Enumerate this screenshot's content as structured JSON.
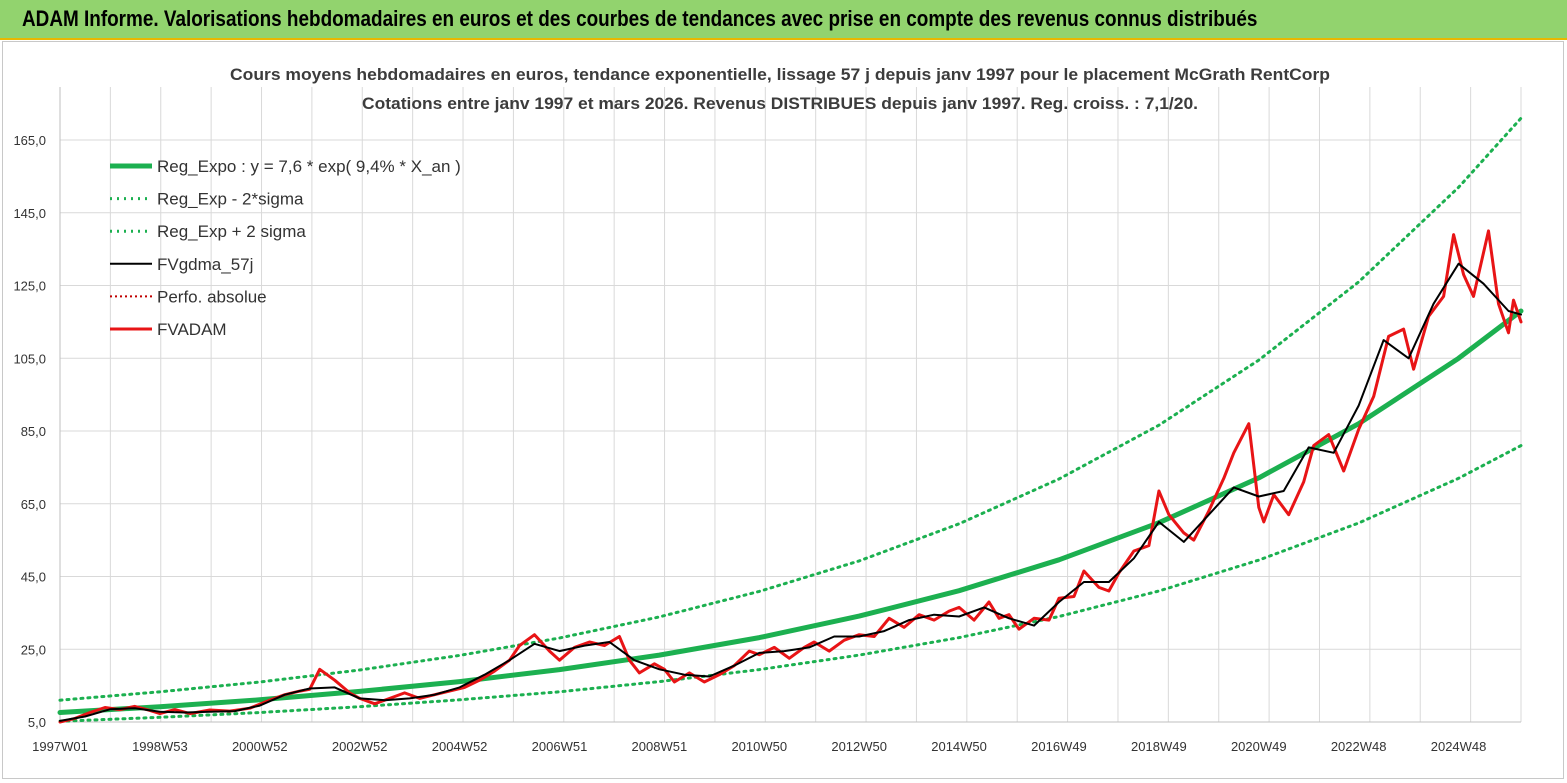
{
  "header": {
    "banner": "ADAM Informe. Valorisations hebdomadaires en euros et des courbes de tendances avec prise en compte des revenus connus distribués"
  },
  "chart_data": {
    "type": "line",
    "title": "Cours moyens hebdomadaires en euros, tendance exponentielle, lissage 57 j depuis janv 1997 pour le placement McGrath RentCorp",
    "subtitle": "Cotations entre janv 1997 et mars 2026. Revenus DISTRIBUES depuis janv 1997. Reg. croiss. : 7,1/20.",
    "xlabel": "",
    "ylabel": "",
    "x_tick_labels": [
      "1997W01",
      "1998W53",
      "2000W52",
      "2002W52",
      "2004W52",
      "2006W51",
      "2008W51",
      "2010W50",
      "2012W50",
      "2014W50",
      "2016W49",
      "2018W49",
      "2020W49",
      "2022W48",
      "2024W48"
    ],
    "x_range": [
      1997.0,
      2026.25
    ],
    "x_tick_years": [
      1997.0,
      1999.0,
      2001.0,
      2003.0,
      2005.0,
      2007.0,
      2009.0,
      2011.0,
      2013.0,
      2015.0,
      2017.0,
      2019.0,
      2021.0,
      2023.0,
      2025.0
    ],
    "y_ticks": [
      "5,0",
      "25,0",
      "45,0",
      "65,0",
      "85,0",
      "105,0",
      "125,0",
      "145,0",
      "165,0"
    ],
    "ylim": [
      5,
      165
    ],
    "grid": true,
    "legend_position": "top-left",
    "series": [
      {
        "name": "Reg_Expo : y = 7,6 * exp( 9,4% *  X_an )",
        "style": "solid-thick",
        "color": "#1cb050",
        "points": [
          [
            1997.0,
            7.6
          ],
          [
            1999,
            9.2
          ],
          [
            2001,
            11.1
          ],
          [
            2003,
            13.4
          ],
          [
            2005,
            16.1
          ],
          [
            2007,
            19.4
          ],
          [
            2009,
            23.4
          ],
          [
            2011,
            28.2
          ],
          [
            2013,
            34.1
          ],
          [
            2015,
            41.1
          ],
          [
            2017,
            49.6
          ],
          [
            2019,
            59.8
          ],
          [
            2021,
            72.1
          ],
          [
            2023,
            87.0
          ],
          [
            2025,
            105.0
          ],
          [
            2026.25,
            118.0
          ]
        ]
      },
      {
        "name": "Reg_Exp - 2*sigma",
        "style": "dotted",
        "color": "#1cb050",
        "points": [
          [
            1997.0,
            5.2
          ],
          [
            1999,
            6.3
          ],
          [
            2001,
            7.6
          ],
          [
            2003,
            9.2
          ],
          [
            2005,
            11.1
          ],
          [
            2007,
            13.3
          ],
          [
            2009,
            16.1
          ],
          [
            2011,
            19.4
          ],
          [
            2013,
            23.4
          ],
          [
            2015,
            28.2
          ],
          [
            2017,
            34.0
          ],
          [
            2019,
            41.0
          ],
          [
            2021,
            49.5
          ],
          [
            2023,
            59.7
          ],
          [
            2025,
            72.0
          ],
          [
            2026.25,
            81.0
          ]
        ]
      },
      {
        "name": "Reg_Exp + 2 sigma",
        "style": "dotted",
        "color": "#1cb050",
        "points": [
          [
            1997.0,
            11.0
          ],
          [
            1999,
            13.3
          ],
          [
            2001,
            16.0
          ],
          [
            2003,
            19.3
          ],
          [
            2005,
            23.3
          ],
          [
            2007,
            28.1
          ],
          [
            2009,
            33.9
          ],
          [
            2011,
            40.9
          ],
          [
            2013,
            49.3
          ],
          [
            2015,
            59.5
          ],
          [
            2017,
            71.8
          ],
          [
            2019,
            86.6
          ],
          [
            2021,
            104.5
          ],
          [
            2023,
            126.0
          ],
          [
            2025,
            152.0
          ],
          [
            2026.25,
            171.0
          ]
        ]
      },
      {
        "name": "FVgdma_57j",
        "style": "solid-thin",
        "color": "#000000",
        "points": [
          [
            1997.0,
            5.3
          ],
          [
            1997.5,
            6.5
          ],
          [
            1998.0,
            8.5
          ],
          [
            1998.5,
            8.8
          ],
          [
            1999.0,
            7.8
          ],
          [
            1999.5,
            7.6
          ],
          [
            2000.0,
            7.8
          ],
          [
            2000.5,
            8.0
          ],
          [
            2001.0,
            9.5
          ],
          [
            2001.5,
            12.5
          ],
          [
            2002.0,
            14.2
          ],
          [
            2002.5,
            14.5
          ],
          [
            2003.0,
            11.5
          ],
          [
            2003.5,
            11.0
          ],
          [
            2004.0,
            11.5
          ],
          [
            2004.5,
            12.5
          ],
          [
            2005.0,
            14.5
          ],
          [
            2005.5,
            18.0
          ],
          [
            2006.0,
            22.0
          ],
          [
            2006.5,
            26.5
          ],
          [
            2007.0,
            24.5
          ],
          [
            2007.5,
            26.0
          ],
          [
            2008.0,
            27.0
          ],
          [
            2008.5,
            22.0
          ],
          [
            2009.0,
            19.5
          ],
          [
            2009.5,
            18.0
          ],
          [
            2010.0,
            17.5
          ],
          [
            2010.5,
            20.5
          ],
          [
            2011.0,
            24.0
          ],
          [
            2011.5,
            24.5
          ],
          [
            2012.0,
            25.5
          ],
          [
            2012.5,
            28.5
          ],
          [
            2013.0,
            28.5
          ],
          [
            2013.5,
            30.0
          ],
          [
            2014.0,
            33.0
          ],
          [
            2014.5,
            34.5
          ],
          [
            2015.0,
            34.0
          ],
          [
            2015.5,
            36.5
          ],
          [
            2016.0,
            33.5
          ],
          [
            2016.5,
            31.5
          ],
          [
            2017.0,
            38.0
          ],
          [
            2017.5,
            43.5
          ],
          [
            2018.0,
            43.5
          ],
          [
            2018.5,
            50.0
          ],
          [
            2019.0,
            60.0
          ],
          [
            2019.5,
            54.5
          ],
          [
            2020.0,
            62.0
          ],
          [
            2020.5,
            69.5
          ],
          [
            2021.0,
            67.0
          ],
          [
            2021.5,
            68.5
          ],
          [
            2022.0,
            80.5
          ],
          [
            2022.5,
            79.0
          ],
          [
            2023.0,
            92.0
          ],
          [
            2023.5,
            110.0
          ],
          [
            2024.0,
            105.0
          ],
          [
            2024.5,
            120.0
          ],
          [
            2025.0,
            131.0
          ],
          [
            2025.5,
            125.5
          ],
          [
            2026.0,
            118.0
          ],
          [
            2026.25,
            117.0
          ]
        ]
      },
      {
        "name": "Perfo. absolue",
        "style": "dotted",
        "color": "#c00000",
        "points": []
      },
      {
        "name": "FVADAM",
        "style": "solid-thick",
        "color": "#e81416",
        "points": [
          [
            1997.0,
            5.0
          ],
          [
            1997.3,
            6.0
          ],
          [
            1997.6,
            7.6
          ],
          [
            1997.9,
            9.0
          ],
          [
            1998.2,
            8.4
          ],
          [
            1998.5,
            9.3
          ],
          [
            1998.8,
            8.2
          ],
          [
            1999.0,
            7.3
          ],
          [
            1999.3,
            8.4
          ],
          [
            1999.6,
            7.3
          ],
          [
            2000.0,
            8.3
          ],
          [
            2000.4,
            8.0
          ],
          [
            2000.8,
            8.8
          ],
          [
            2001.2,
            11.0
          ],
          [
            2001.5,
            12.5
          ],
          [
            2001.8,
            13.5
          ],
          [
            2002.0,
            14.0
          ],
          [
            2002.2,
            19.5
          ],
          [
            2002.5,
            16.5
          ],
          [
            2002.8,
            13.0
          ],
          [
            2003.0,
            11.5
          ],
          [
            2003.3,
            10.0
          ],
          [
            2003.6,
            11.5
          ],
          [
            2003.9,
            13.0
          ],
          [
            2004.2,
            11.5
          ],
          [
            2004.5,
            12.5
          ],
          [
            2004.8,
            13.5
          ],
          [
            2005.1,
            14.5
          ],
          [
            2005.4,
            16.5
          ],
          [
            2005.7,
            19.0
          ],
          [
            2006.0,
            22.0
          ],
          [
            2006.2,
            26.0
          ],
          [
            2006.5,
            29.0
          ],
          [
            2006.8,
            24.5
          ],
          [
            2007.0,
            22.0
          ],
          [
            2007.3,
            25.5
          ],
          [
            2007.6,
            27.0
          ],
          [
            2007.9,
            26.0
          ],
          [
            2008.2,
            28.5
          ],
          [
            2008.4,
            22.0
          ],
          [
            2008.6,
            18.5
          ],
          [
            2008.9,
            21.0
          ],
          [
            2009.1,
            19.5
          ],
          [
            2009.3,
            16.0
          ],
          [
            2009.6,
            18.5
          ],
          [
            2009.9,
            16.0
          ],
          [
            2010.2,
            18.0
          ],
          [
            2010.5,
            20.5
          ],
          [
            2010.8,
            24.5
          ],
          [
            2011.0,
            23.5
          ],
          [
            2011.3,
            25.5
          ],
          [
            2011.6,
            22.5
          ],
          [
            2011.9,
            25.5
          ],
          [
            2012.1,
            27.0
          ],
          [
            2012.4,
            24.5
          ],
          [
            2012.7,
            27.5
          ],
          [
            2013.0,
            29.0
          ],
          [
            2013.3,
            28.5
          ],
          [
            2013.6,
            33.5
          ],
          [
            2013.9,
            31.0
          ],
          [
            2014.2,
            34.5
          ],
          [
            2014.5,
            33.0
          ],
          [
            2014.8,
            35.5
          ],
          [
            2015.0,
            36.5
          ],
          [
            2015.3,
            33.0
          ],
          [
            2015.6,
            38.0
          ],
          [
            2015.8,
            33.5
          ],
          [
            2016.0,
            34.5
          ],
          [
            2016.2,
            30.5
          ],
          [
            2016.5,
            33.5
          ],
          [
            2016.8,
            33.0
          ],
          [
            2017.0,
            39.0
          ],
          [
            2017.3,
            39.5
          ],
          [
            2017.5,
            46.5
          ],
          [
            2017.8,
            42.0
          ],
          [
            2018.0,
            41.0
          ],
          [
            2018.2,
            46.0
          ],
          [
            2018.5,
            52.0
          ],
          [
            2018.8,
            53.5
          ],
          [
            2019.0,
            68.5
          ],
          [
            2019.2,
            62.0
          ],
          [
            2019.5,
            57.0
          ],
          [
            2019.7,
            55.0
          ],
          [
            2020.0,
            63.0
          ],
          [
            2020.3,
            72.0
          ],
          [
            2020.5,
            79.0
          ],
          [
            2020.8,
            87.0
          ],
          [
            2021.0,
            64.0
          ],
          [
            2021.1,
            60.0
          ],
          [
            2021.3,
            67.5
          ],
          [
            2021.6,
            62.0
          ],
          [
            2021.9,
            71.0
          ],
          [
            2022.1,
            81.0
          ],
          [
            2022.4,
            84.0
          ],
          [
            2022.7,
            74.0
          ],
          [
            2023.0,
            85.5
          ],
          [
            2023.3,
            94.5
          ],
          [
            2023.6,
            111.0
          ],
          [
            2023.9,
            113.0
          ],
          [
            2024.1,
            102.0
          ],
          [
            2024.4,
            116.5
          ],
          [
            2024.7,
            122.0
          ],
          [
            2024.9,
            139.0
          ],
          [
            2025.1,
            128.0
          ],
          [
            2025.3,
            122.0
          ],
          [
            2025.6,
            140.0
          ],
          [
            2025.8,
            120.0
          ],
          [
            2026.0,
            112.0
          ],
          [
            2026.1,
            121.0
          ],
          [
            2026.25,
            115.0
          ]
        ]
      }
    ]
  }
}
